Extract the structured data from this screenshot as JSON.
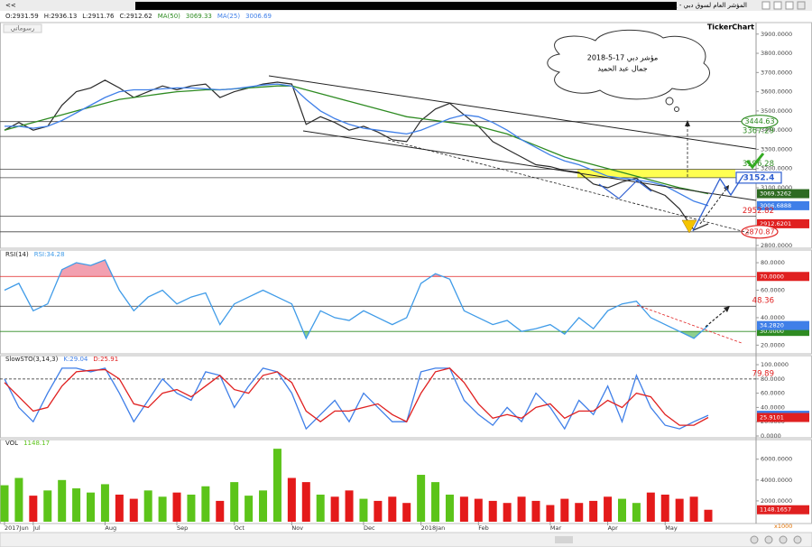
{
  "window_title": "المؤشر العام لسوق دبي - يوم",
  "nav": "<<",
  "logo": "TickerChart",
  "drawings_label": "رسوماتي",
  "note": [
    "مؤشر دبي 17-5-2018",
    "جمال عبد الحميد"
  ],
  "chart_data": [
    {
      "type": "line",
      "header": [
        "O:2931.59",
        "H:2936.13",
        "L:2911.76",
        "C:2912.62"
      ],
      "series": [
        {
          "color": "#2b2b2b",
          "values": [
            3400,
            3440,
            3400,
            3420,
            3530,
            3600,
            3620,
            3660,
            3620,
            3570,
            3600,
            3630,
            3610,
            3630,
            3640,
            3570,
            3600,
            3620,
            3640,
            3650,
            3640,
            3430,
            3470,
            3440,
            3400,
            3420,
            3390,
            3350,
            3340,
            3450,
            3510,
            3540,
            3480,
            3420,
            3340,
            3300,
            3260,
            3220,
            3210,
            3190,
            3180,
            3120,
            3100,
            3130,
            3150,
            3090,
            3060,
            2990,
            2880,
            2912.62
          ]
        },
        {
          "name": "MA(50)",
          "color": "#2e8b22",
          "values": [
            3400,
            3420,
            3440,
            3460,
            3480,
            3500,
            3520,
            3540,
            3560,
            3570,
            3580,
            3590,
            3600,
            3605,
            3610,
            3610,
            3615,
            3620,
            3625,
            3630,
            3630,
            3610,
            3590,
            3570,
            3550,
            3530,
            3510,
            3490,
            3470,
            3460,
            3450,
            3440,
            3430,
            3420,
            3400,
            3380,
            3350,
            3320,
            3290,
            3260,
            3240,
            3220,
            3200,
            3180,
            3160,
            3140,
            3120,
            3100,
            3085,
            3069.33
          ]
        },
        {
          "name": "MA(25)",
          "color": "#3f7fe8",
          "values": [
            3420,
            3420,
            3410,
            3420,
            3450,
            3490,
            3530,
            3570,
            3600,
            3610,
            3610,
            3615,
            3620,
            3620,
            3615,
            3610,
            3615,
            3625,
            3635,
            3640,
            3630,
            3560,
            3500,
            3460,
            3430,
            3410,
            3400,
            3390,
            3380,
            3400,
            3430,
            3460,
            3480,
            3470,
            3440,
            3400,
            3350,
            3310,
            3270,
            3240,
            3220,
            3190,
            3160,
            3150,
            3140,
            3130,
            3110,
            3070,
            3030,
            3006.69
          ]
        }
      ],
      "ylim": [
        2790,
        3960
      ],
      "yticks": [
        {
          "value": 2800,
          "label": "2800.0000"
        },
        {
          "value": 2900,
          "label": "2900.0000"
        },
        {
          "value": 3000,
          "label": "3000.0000"
        },
        {
          "value": 3100,
          "label": "3100.0000"
        },
        {
          "value": 3200,
          "label": "3200.0000"
        },
        {
          "value": 3300,
          "label": "3300.0000"
        },
        {
          "value": 3400,
          "label": "3400.0000"
        },
        {
          "value": 3500,
          "label": "3500.0000"
        },
        {
          "value": 3600,
          "label": "3600.0000"
        },
        {
          "value": 3700,
          "label": "3700.0000"
        },
        {
          "value": 3800,
          "label": "3800.0000"
        },
        {
          "value": 3900,
          "label": "3900.0000"
        }
      ],
      "levels": [
        {
          "value": 3444.63,
          "color": "#2e8b22",
          "style": "circle",
          "line": true
        },
        {
          "value": 3367.29,
          "color": "#2e8b22",
          "style": "text",
          "line": true
        },
        {
          "value": 3196.28,
          "color": "#2e8b22",
          "style": "text",
          "line": true,
          "band": true
        },
        {
          "value": 3152.4,
          "color": "#2f5fd0",
          "style": "outline",
          "line": true,
          "band": true
        },
        {
          "value": 3069.3262,
          "color": "#2e6b22",
          "style": "box"
        },
        {
          "value": 3006.6888,
          "color": "#3f7fe8",
          "style": "box"
        },
        {
          "value": 2952.82,
          "color": "#e02020",
          "style": "text",
          "line": true
        },
        {
          "value": 2912.6201,
          "color": "#e02020",
          "style": "box"
        },
        {
          "value": 2870.87,
          "color": "#e02020",
          "style": "circle",
          "line": true
        }
      ],
      "band_color": "#ffff33"
    },
    {
      "type": "line",
      "title": "RSI(14)",
      "header": [
        "RSI:34.28"
      ],
      "header_colors": [
        "#3f9be8"
      ],
      "series": [
        {
          "color": "#3f9be8",
          "values": [
            60,
            65,
            45,
            50,
            75,
            80,
            78,
            82,
            60,
            45,
            55,
            60,
            50,
            55,
            58,
            35,
            50,
            55,
            60,
            55,
            50,
            25,
            45,
            40,
            38,
            45,
            40,
            35,
            40,
            65,
            72,
            68,
            45,
            40,
            35,
            38,
            30,
            32,
            35,
            28,
            40,
            32,
            45,
            50,
            52,
            40,
            35,
            30,
            25,
            34.28
          ]
        }
      ],
      "ylim": [
        15,
        82
      ],
      "yticks": [
        {
          "value": 20,
          "label": "20.0000"
        },
        {
          "value": 40,
          "label": "40.0000"
        },
        {
          "value": 60,
          "label": "60.0000"
        },
        {
          "value": 80,
          "label": "80.0000"
        }
      ],
      "levels": [
        {
          "value": 70,
          "label": "70.0000",
          "color": "#e02020",
          "style": "box",
          "line": true,
          "line_color": "#e02020",
          "fill": "#f2a0b0",
          "side": "above"
        },
        {
          "value": 30,
          "label": "30.0000",
          "color": "#2e8b22",
          "style": "box",
          "line": true,
          "line_color": "#2e8b22",
          "fill": "#8fcf8f",
          "side": "below"
        },
        {
          "value": 34.282,
          "label": "34.2820",
          "color": "#3f7fe8",
          "style": "box"
        },
        {
          "value": 48.36,
          "color": "#e02020",
          "style": "text",
          "line": true,
          "line_color": "#333333"
        }
      ]
    },
    {
      "type": "line",
      "title": "SlowSTO(3,14,3)",
      "header": [
        "K:29.04",
        "D:25.91"
      ],
      "header_colors": [
        "#3f7fe8",
        "#e02020"
      ],
      "series": [
        {
          "color": "#3f7fe8",
          "values": [
            80,
            40,
            20,
            60,
            95,
            95,
            90,
            95,
            60,
            20,
            50,
            80,
            60,
            50,
            90,
            85,
            40,
            70,
            95,
            90,
            60,
            10,
            30,
            50,
            20,
            60,
            40,
            20,
            20,
            90,
            95,
            95,
            50,
            30,
            15,
            40,
            20,
            60,
            40,
            10,
            50,
            30,
            70,
            20,
            85,
            40,
            15,
            10,
            20,
            29.04
          ]
        },
        {
          "color": "#e02020",
          "values": [
            75,
            55,
            35,
            40,
            70,
            90,
            92,
            93,
            80,
            45,
            40,
            60,
            65,
            55,
            70,
            85,
            65,
            60,
            85,
            90,
            75,
            35,
            20,
            35,
            35,
            40,
            45,
            30,
            20,
            60,
            90,
            95,
            75,
            45,
            25,
            30,
            25,
            40,
            45,
            25,
            35,
            35,
            50,
            40,
            60,
            55,
            30,
            15,
            15,
            25.91
          ]
        }
      ],
      "ylim": [
        0,
        100
      ],
      "yticks": [
        {
          "value": 0,
          "label": "0.0000"
        },
        {
          "value": 20,
          "label": "20.0000"
        },
        {
          "value": 40,
          "label": "40.0000"
        },
        {
          "value": 60,
          "label": "60.0000"
        },
        {
          "value": 80,
          "label": "80.0000"
        },
        {
          "value": 100,
          "label": "100.0000"
        }
      ],
      "levels": [
        {
          "value": 79.89,
          "color": "#e02020",
          "style": "text",
          "line": true,
          "line_color": "#222222",
          "dash": true
        },
        {
          "value": 29.042,
          "label": "29.0420",
          "color": "#3f7fe8",
          "style": "box"
        },
        {
          "value": 25.9101,
          "color": "#e02020",
          "style": "box"
        }
      ]
    },
    {
      "type": "bar",
      "title": "VOL",
      "header": [
        "1148.17"
      ],
      "header_colors": [
        "#5cc41a"
      ],
      "categories": [
        "2017Jun",
        null,
        "Jul",
        null,
        null,
        null,
        null,
        "Aug",
        null,
        null,
        null,
        null,
        "Sep",
        null,
        null,
        null,
        "Oct",
        null,
        null,
        null,
        "Nov",
        null,
        null,
        null,
        null,
        "Dec",
        null,
        null,
        null,
        "2018Jan",
        null,
        null,
        null,
        "Feb",
        null,
        null,
        null,
        null,
        "Mar",
        null,
        null,
        null,
        "Apr",
        null,
        null,
        null,
        "May",
        null,
        null,
        null
      ],
      "values": [
        3500,
        4200,
        2500,
        3000,
        4000,
        3200,
        2800,
        3600,
        2600,
        2200,
        3000,
        2400,
        2800,
        2600,
        3400,
        2000,
        3800,
        2500,
        3000,
        7000,
        4200,
        3800,
        2600,
        2400,
        3000,
        2200,
        2000,
        2400,
        1800,
        4500,
        3800,
        2600,
        2400,
        2200,
        2000,
        1800,
        2400,
        2000,
        1600,
        2200,
        1800,
        2000,
        2400,
        2200,
        1800,
        2800,
        2600,
        2200,
        2400,
        1148.1657
      ],
      "colors": [
        "#5cc41a",
        "#5cc41a",
        "#e41a1a",
        "#5cc41a",
        "#5cc41a",
        "#5cc41a",
        "#5cc41a",
        "#5cc41a",
        "#e41a1a",
        "#e41a1a",
        "#5cc41a",
        "#5cc41a",
        "#e41a1a",
        "#5cc41a",
        "#5cc41a",
        "#e41a1a",
        "#5cc41a",
        "#5cc41a",
        "#5cc41a",
        "#5cc41a",
        "#e41a1a",
        "#e41a1a",
        "#5cc41a",
        "#e41a1a",
        "#e41a1a",
        "#5cc41a",
        "#e41a1a",
        "#e41a1a",
        "#e41a1a",
        "#5cc41a",
        "#5cc41a",
        "#5cc41a",
        "#e41a1a",
        "#e41a1a",
        "#e41a1a",
        "#e41a1a",
        "#e41a1a",
        "#e41a1a",
        "#e41a1a",
        "#e41a1a",
        "#e41a1a",
        "#e41a1a",
        "#e41a1a",
        "#5cc41a",
        "#5cc41a",
        "#e41a1a",
        "#e41a1a",
        "#e41a1a",
        "#e41a1a",
        "#e41a1a"
      ],
      "ylim": [
        0,
        7100
      ],
      "yticks": [
        {
          "value": 2000,
          "label": "2000.0000"
        },
        {
          "value": 4000,
          "label": "4000.0000"
        },
        {
          "value": 6000,
          "label": "6000.0000"
        }
      ],
      "levels": [
        {
          "value": 1148.1657,
          "color": "#e02020",
          "style": "box"
        }
      ],
      "unit_label": "x1000"
    }
  ]
}
